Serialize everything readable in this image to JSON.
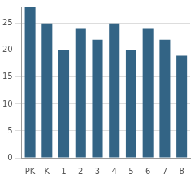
{
  "chart_data": {
    "type": "bar",
    "categories": [
      "PK",
      "K",
      "1",
      "2",
      "3",
      "4",
      "5",
      "6",
      "7",
      "8"
    ],
    "values": [
      28,
      25,
      20,
      24,
      22,
      25,
      20,
      24,
      22,
      19
    ],
    "color": "#336485",
    "ylim": [
      0,
      28
    ],
    "yticks": [
      0,
      5,
      10,
      15,
      20,
      25
    ],
    "grid": true
  }
}
